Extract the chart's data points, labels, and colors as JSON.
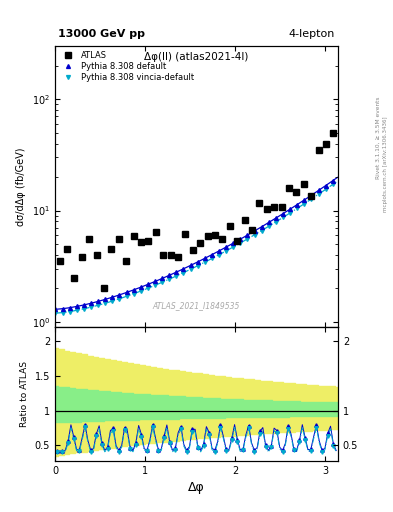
{
  "title_left": "13000 GeV pp",
  "title_right": "4-lepton",
  "plot_title": "Δφ(ll) (atlas2021-4l)",
  "xlabel": "Δφ",
  "ylabel_main": "dσ/dΔφ (fb/GeV)",
  "ylabel_ratio": "Ratio to ATLAS",
  "right_label1": "Rivet 3.1.10, ≥ 3.5M events",
  "right_label2": "mcplots.cern.ch [arXiv:1306.3436]",
  "watermark": "ATLAS_2021_I1849535",
  "legend": [
    "ATLAS",
    "Pythia 8.308 default",
    "Pythia 8.308 vincia-default"
  ],
  "main_ylim": [
    0.9,
    300.0
  ],
  "ratio_ylim": [
    0.28,
    2.2
  ],
  "xlim": [
    0.0,
    3.14159
  ],
  "atlas_color": "#000000",
  "pythia_default_color": "#0000cc",
  "pythia_vincia_color": "#00aacc",
  "band_green": "#88ee88",
  "band_yellow": "#eeee66"
}
